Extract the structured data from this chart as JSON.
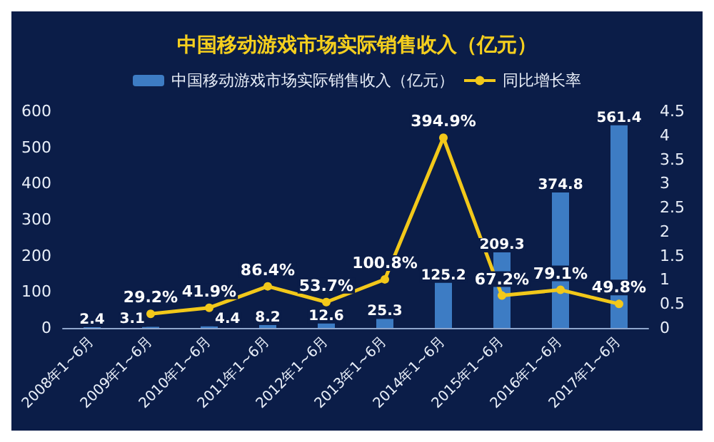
{
  "chart_data": {
    "type": "bar",
    "title": "中国移动游戏市场实际销售收入（亿元）",
    "categories": [
      "2008年1~6月",
      "2009年1~6月",
      "2010年1~6月",
      "2011年1~6月",
      "2012年1~6月",
      "2013年1~6月",
      "2014年1~6月",
      "2015年1~6月",
      "2016年1~6月",
      "2017年1~6月"
    ],
    "series": [
      {
        "name": "中国移动游戏市场实际销售收入（亿元）",
        "color": "#3d7cc4",
        "values": [
          2.4,
          3.1,
          4.4,
          8.2,
          12.6,
          25.3,
          125.2,
          209.3,
          374.8,
          561.4
        ],
        "value_labels": [
          "2.4",
          "3.1",
          "4.4",
          "8.2",
          "12.6",
          "25.3",
          "125.2",
          "209.3",
          "374.8",
          "561.4"
        ]
      },
      {
        "name": "同比增长率",
        "type": "line",
        "axis": "y2",
        "color": "#f2c81a",
        "marker": "circle",
        "values": [
          null,
          0.292,
          0.419,
          0.864,
          0.537,
          1.008,
          3.949,
          0.672,
          0.791,
          0.498
        ],
        "value_labels": [
          null,
          "29.2%",
          "41.9%",
          "86.4%",
          "53.7%",
          "100.8%",
          "394.9%",
          "67.2%",
          "79.1%",
          "49.8%"
        ]
      }
    ],
    "ylim": [
      0,
      600
    ],
    "yticks": [
      0,
      100,
      200,
      300,
      400,
      500,
      600
    ],
    "y2lim": [
      0,
      4.5
    ],
    "y2ticks": [
      0,
      0.5,
      1,
      1.5,
      2,
      2.5,
      3,
      3.5,
      4,
      4.5
    ],
    "grid": false,
    "legend": "top"
  }
}
